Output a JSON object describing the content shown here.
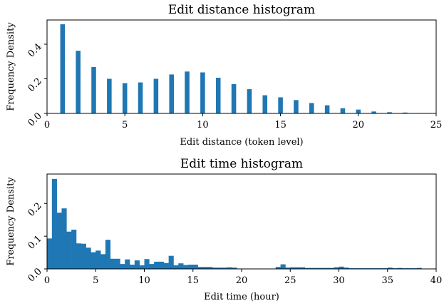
{
  "chart_data": [
    {
      "type": "bar",
      "title": "Edit distance histogram",
      "xlabel": "Edit distance (token level)",
      "ylabel": "Frequency Density",
      "xlim": [
        0,
        25
      ],
      "ylim": [
        0,
        0.54
      ],
      "xticks": [
        "0",
        "5",
        "10",
        "15",
        "20",
        "25"
      ],
      "yticks": [
        "0.0",
        "0.2",
        "0.4"
      ],
      "color": "#1f77b4",
      "grid": false,
      "x": [
        1,
        2,
        3,
        4,
        5,
        6,
        7,
        8,
        9,
        10,
        11,
        12,
        13,
        14,
        15,
        16,
        17,
        18,
        19,
        20,
        21,
        22,
        23
      ],
      "values": [
        0.515,
        0.362,
        0.268,
        0.2,
        0.175,
        0.179,
        0.2,
        0.225,
        0.242,
        0.237,
        0.206,
        0.169,
        0.14,
        0.105,
        0.093,
        0.077,
        0.06,
        0.047,
        0.03,
        0.022,
        0.011,
        0.007,
        0.005
      ]
    },
    {
      "type": "bar",
      "title": "Edit time histogram",
      "xlabel": "Edit time (hour)",
      "ylabel": "Frequency Density",
      "xlim": [
        0,
        40
      ],
      "ylim": [
        0,
        0.29
      ],
      "xticks": [
        "0",
        "5",
        "10",
        "15",
        "20",
        "25",
        "30",
        "35",
        "40"
      ],
      "yticks": [
        "0.0",
        "0.1",
        "0.2"
      ],
      "color": "#1f77b4",
      "grid": false,
      "bin_width": 0.5,
      "x": [
        0,
        0.5,
        1,
        1.5,
        2,
        2.5,
        3,
        3.5,
        4,
        4.5,
        5,
        5.5,
        6,
        6.5,
        7,
        7.5,
        8,
        8.5,
        9,
        9.5,
        10,
        10.5,
        11,
        11.5,
        12,
        12.5,
        13,
        13.5,
        14,
        14.5,
        15,
        15.5,
        16,
        16.5,
        17,
        17.5,
        18,
        18.5,
        19,
        23.5,
        24,
        24.5,
        25,
        25.5,
        26,
        26.5,
        27,
        27.5,
        28,
        28.5,
        29,
        29.5,
        30,
        30.5,
        31,
        31.5,
        32,
        32.5,
        33,
        33.5,
        34,
        34.5,
        35,
        35.5,
        36,
        36.5,
        37,
        37.5,
        38
      ],
      "values": [
        0.093,
        0.275,
        0.172,
        0.185,
        0.114,
        0.12,
        0.078,
        0.077,
        0.065,
        0.051,
        0.056,
        0.045,
        0.089,
        0.031,
        0.031,
        0.015,
        0.029,
        0.013,
        0.026,
        0.011,
        0.03,
        0.015,
        0.022,
        0.022,
        0.018,
        0.04,
        0.011,
        0.017,
        0.012,
        0.013,
        0.013,
        0.006,
        0.006,
        0.006,
        0.004,
        0.004,
        0.004,
        0.005,
        0.004,
        0.006,
        0.014,
        0.004,
        0.005,
        0.005,
        0.005,
        0.003,
        0.003,
        0.003,
        0.003,
        0.003,
        0.003,
        0.005,
        0.007,
        0.004,
        0.002,
        0.002,
        0.002,
        0.002,
        0.002,
        0.002,
        0.002,
        0.002,
        0.004,
        0.002,
        0.003,
        0.002,
        0.002,
        0.002,
        0.003
      ]
    }
  ]
}
